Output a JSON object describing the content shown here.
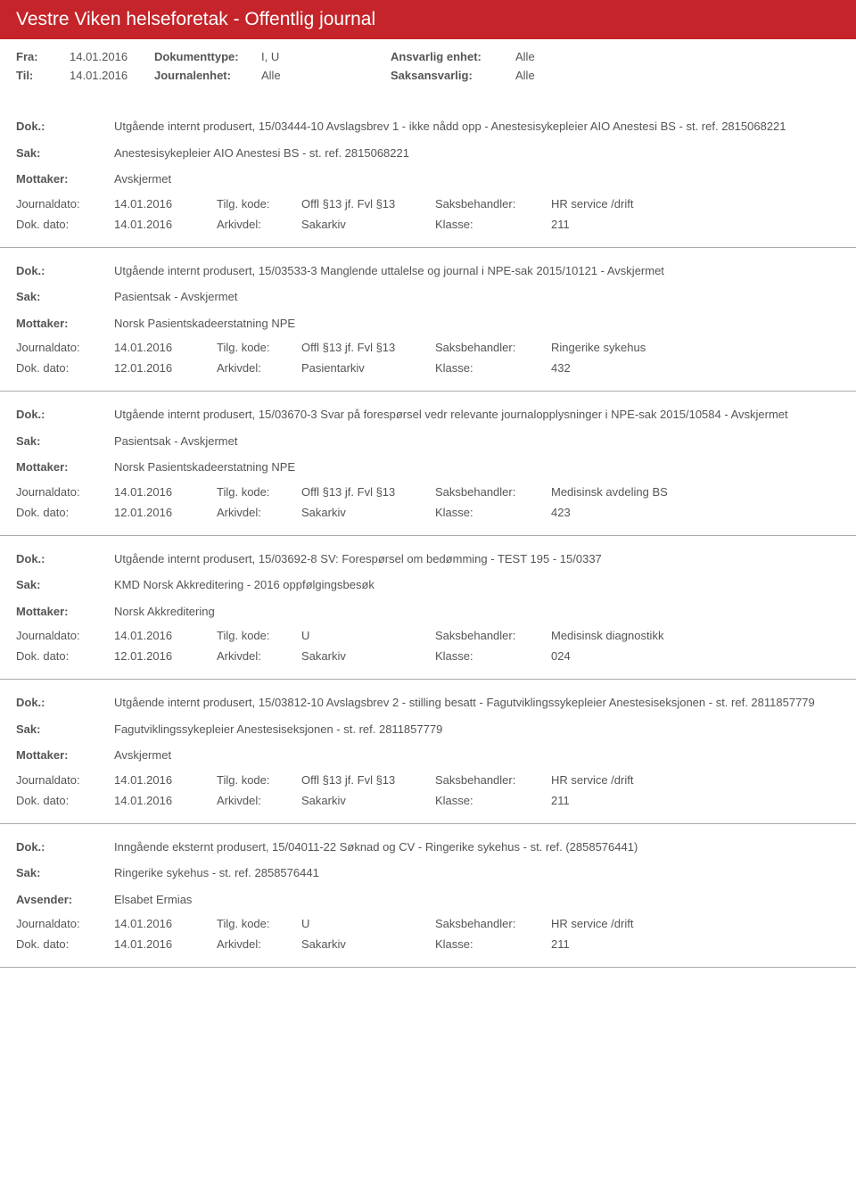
{
  "header": {
    "title": "Vestre Viken helseforetak - Offentlig journal"
  },
  "filter": {
    "fra_label": "Fra:",
    "fra_value": "14.01.2016",
    "til_label": "Til:",
    "til_value": "14.01.2016",
    "doktype_label": "Dokumenttype:",
    "doktype_value": "I, U",
    "journalenhet_label": "Journalenhet:",
    "journalenhet_value": "Alle",
    "ansvenhet_label": "Ansvarlig enhet:",
    "ansvenhet_value": "Alle",
    "saksansv_label": "Saksansvarlig:",
    "saksansv_value": "Alle"
  },
  "labels": {
    "dok": "Dok.:",
    "sak": "Sak:",
    "mottaker": "Mottaker:",
    "avsender": "Avsender:",
    "journaldato": "Journaldato:",
    "dokdato": "Dok. dato:",
    "tilgkode": "Tilg. kode:",
    "arkivdel": "Arkivdel:",
    "saksbeh": "Saksbehandler:",
    "klasse": "Klasse:"
  },
  "entries": [
    {
      "dok": "Utgående internt produsert, 15/03444-10 Avslagsbrev 1 - ikke nådd opp - Anestesisykepleier AIO Anestesi BS - st. ref. 2815068221",
      "sak": "Anestesisykepleier AIO Anestesi BS - st. ref. 2815068221",
      "party_label": "Mottaker:",
      "party": "Avskjermet",
      "journaldato": "14.01.2016",
      "tilgkode": "Offl §13 jf. Fvl §13",
      "saksbeh": "HR service /drift",
      "dokdato": "14.01.2016",
      "arkivdel": "Sakarkiv",
      "klasse": "211"
    },
    {
      "dok": "Utgående internt produsert, 15/03533-3 Manglende uttalelse og journal i NPE-sak 2015/10121 - Avskjermet",
      "sak": "Pasientsak - Avskjermet",
      "party_label": "Mottaker:",
      "party": "Norsk Pasientskadeerstatning NPE",
      "journaldato": "14.01.2016",
      "tilgkode": "Offl §13 jf. Fvl §13",
      "saksbeh": "Ringerike sykehus",
      "dokdato": "12.01.2016",
      "arkivdel": "Pasientarkiv",
      "klasse": "432"
    },
    {
      "dok": "Utgående internt produsert, 15/03670-3 Svar på forespørsel vedr relevante journalopplysninger i NPE-sak 2015/10584 - Avskjermet",
      "sak": "Pasientsak - Avskjermet",
      "party_label": "Mottaker:",
      "party": "Norsk Pasientskadeerstatning NPE",
      "journaldato": "14.01.2016",
      "tilgkode": "Offl §13 jf. Fvl §13",
      "saksbeh": "Medisinsk avdeling BS",
      "dokdato": "12.01.2016",
      "arkivdel": "Sakarkiv",
      "klasse": "423"
    },
    {
      "dok": "Utgående internt produsert, 15/03692-8 SV: Forespørsel om bedømming - TEST 195  -  15/0337",
      "sak": "KMD Norsk Akkreditering - 2016 oppfølgingsbesøk",
      "party_label": "Mottaker:",
      "party": "Norsk Akkreditering",
      "journaldato": "14.01.2016",
      "tilgkode": "U",
      "saksbeh": "Medisinsk diagnostikk",
      "dokdato": "12.01.2016",
      "arkivdel": "Sakarkiv",
      "klasse": "024"
    },
    {
      "dok": "Utgående internt produsert, 15/03812-10 Avslagsbrev 2 - stilling besatt - Fagutviklingssykepleier Anestesiseksjonen - st. ref. 2811857779",
      "sak": "Fagutviklingssykepleier Anestesiseksjonen - st. ref. 2811857779",
      "party_label": "Mottaker:",
      "party": "Avskjermet",
      "journaldato": "14.01.2016",
      "tilgkode": "Offl §13 jf. Fvl §13",
      "saksbeh": "HR service /drift",
      "dokdato": "14.01.2016",
      "arkivdel": "Sakarkiv",
      "klasse": "211"
    },
    {
      "dok": "Inngående eksternt produsert, 15/04011-22 Søknad og CV - Ringerike sykehus - st. ref. (2858576441)",
      "sak": "Ringerike sykehus  - st. ref. 2858576441",
      "party_label": "Avsender:",
      "party": "Elsabet Ermias",
      "journaldato": "14.01.2016",
      "tilgkode": "U",
      "saksbeh": "HR service /drift",
      "dokdato": "14.01.2016",
      "arkivdel": "Sakarkiv",
      "klasse": "211"
    }
  ]
}
